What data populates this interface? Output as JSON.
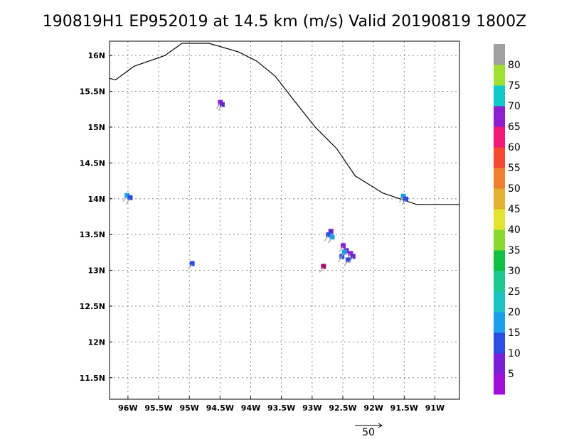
{
  "title": "190819H1  EP952019  at  14.5  km  (m/s)  Valid  20190819  1800Z",
  "map": {
    "lon_range": [
      -96.3,
      -90.6
    ],
    "lat_range": [
      11.2,
      16.2
    ],
    "lon_ticks": [
      -96,
      -95.5,
      -95,
      -94.5,
      -94,
      -93.5,
      -93,
      -92.5,
      -92,
      -91.5,
      -91
    ],
    "lon_tick_labels": [
      "96W",
      "95.5W",
      "95W",
      "94.5W",
      "94W",
      "93.5W",
      "93W",
      "92.5W",
      "92W",
      "91.5W",
      "91W"
    ],
    "lat_ticks": [
      11.5,
      12,
      12.5,
      13,
      13.5,
      14,
      14.5,
      15,
      15.5,
      16
    ],
    "lat_tick_labels": [
      "11.5N",
      "12N",
      "12.5N",
      "13N",
      "13.5N",
      "14N",
      "14.5N",
      "15N",
      "15.5N",
      "16N"
    ],
    "grid": true,
    "coastline": [
      [
        -96.3,
        15.68
      ],
      [
        -96.2,
        15.66
      ],
      [
        -95.9,
        15.85
      ],
      [
        -95.4,
        16.0
      ],
      [
        -95.12,
        16.17
      ],
      [
        -94.68,
        16.17
      ],
      [
        -94.2,
        16.05
      ],
      [
        -93.9,
        15.92
      ],
      [
        -93.6,
        15.71
      ],
      [
        -93.3,
        15.38
      ],
      [
        -92.95,
        15.0
      ],
      [
        -92.6,
        14.7
      ],
      [
        -92.3,
        14.32
      ],
      [
        -91.85,
        14.08
      ],
      [
        -91.3,
        13.92
      ],
      [
        -90.6,
        13.92
      ]
    ],
    "wind_patches": [
      {
        "lon": -94.5,
        "lat": 15.35,
        "color": "#8e1fd0"
      },
      {
        "lon": -94.47,
        "lat": 15.32,
        "color": "#6a28c8"
      },
      {
        "lon": -96.02,
        "lat": 14.05,
        "color": "#1aa0ea"
      },
      {
        "lon": -95.97,
        "lat": 14.02,
        "color": "#2a4fe0"
      },
      {
        "lon": -94.96,
        "lat": 13.1,
        "color": "#2a4fe0"
      },
      {
        "lon": -91.52,
        "lat": 14.04,
        "color": "#1aa0ea"
      },
      {
        "lon": -91.48,
        "lat": 14.0,
        "color": "#2a4fe0"
      },
      {
        "lon": -92.7,
        "lat": 13.55,
        "color": "#6a28c8"
      },
      {
        "lon": -92.74,
        "lat": 13.5,
        "color": "#2a4fe0"
      },
      {
        "lon": -92.68,
        "lat": 13.47,
        "color": "#1aa0ea"
      },
      {
        "lon": -92.5,
        "lat": 13.35,
        "color": "#8e1fd0"
      },
      {
        "lon": -92.45,
        "lat": 13.28,
        "color": "#6a28c8"
      },
      {
        "lon": -92.38,
        "lat": 13.24,
        "color": "#8e1fd0"
      },
      {
        "lon": -92.52,
        "lat": 13.2,
        "color": "#2a4fe0"
      },
      {
        "lon": -92.42,
        "lat": 13.15,
        "color": "#2a4fe0"
      },
      {
        "lon": -92.34,
        "lat": 13.2,
        "color": "#6a28c8"
      },
      {
        "lon": -92.48,
        "lat": 13.26,
        "color": "#1aa0ea"
      },
      {
        "lon": -92.82,
        "lat": 13.06,
        "color": "#a0106a"
      }
    ]
  },
  "colorbar": {
    "labels": [
      "5",
      "10",
      "15",
      "20",
      "25",
      "30",
      "35",
      "40",
      "45",
      "50",
      "55",
      "60",
      "65",
      "70",
      "75",
      "80"
    ],
    "colors": [
      "#a010d8",
      "#7a1ed8",
      "#2a4fe0",
      "#1aa0ea",
      "#1ec4c4",
      "#1ec892",
      "#10c040",
      "#88d830",
      "#e4e430",
      "#e4b030",
      "#f08030",
      "#f44830",
      "#f01874",
      "#8e1fd0",
      "#10c8c8",
      "#a0e030",
      "#a0a0a0"
    ]
  },
  "vector_legend": {
    "label": "50"
  }
}
